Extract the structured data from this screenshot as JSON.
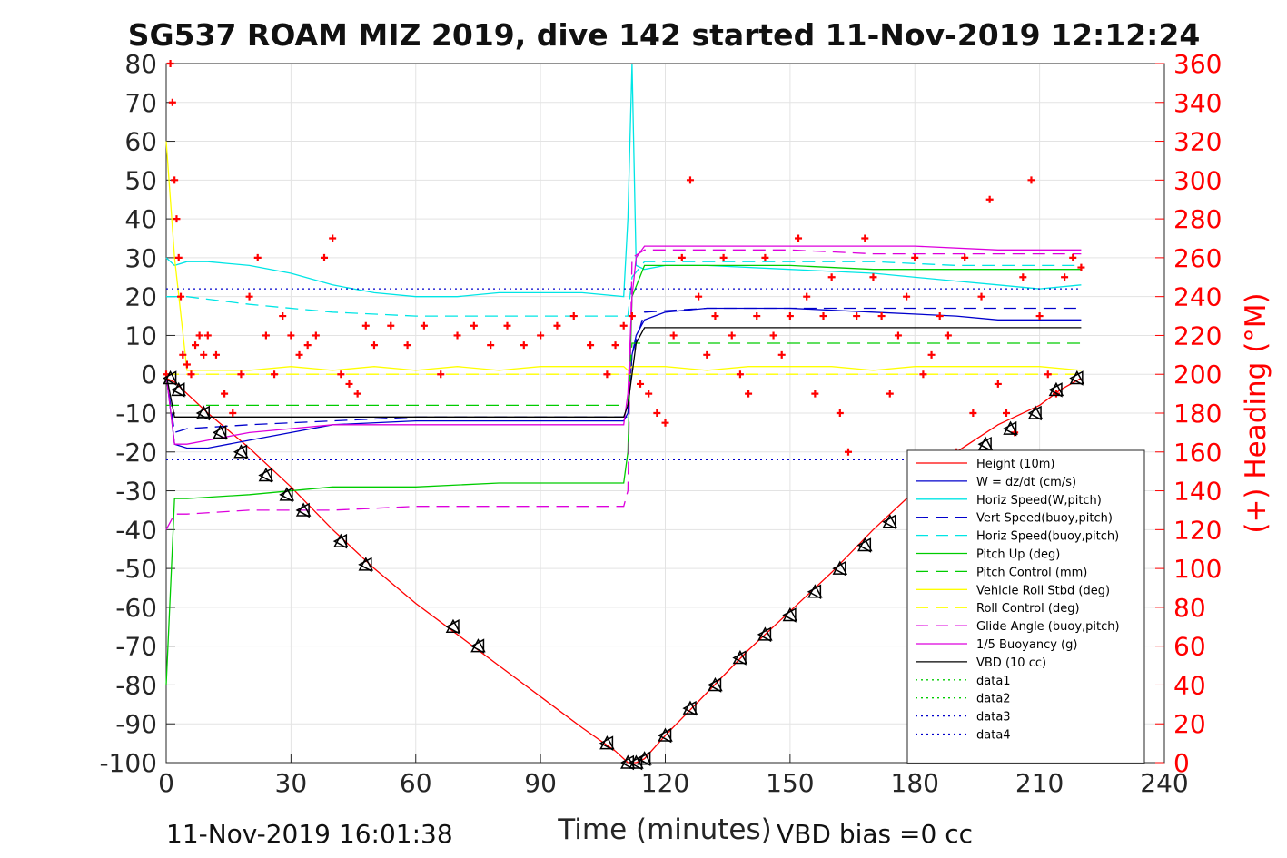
{
  "chart_data": {
    "type": "line",
    "title": "SG537 ROAM MIZ 2019, dive 142 started 11-Nov-2019 12:12:24",
    "xlabel": "Time (minutes)",
    "ylabel": "",
    "y2label": "(+) Heading (°M)",
    "xlim": [
      0,
      240
    ],
    "ylim": [
      -100,
      80
    ],
    "y2lim": [
      0,
      360
    ],
    "xticks": [
      "0",
      "30",
      "60",
      "90",
      "120",
      "150",
      "180",
      "210",
      "240"
    ],
    "yticks": [
      "80",
      "70",
      "60",
      "50",
      "40",
      "30",
      "20",
      "10",
      "0",
      "-10",
      "-20",
      "-30",
      "-40",
      "-50",
      "-60",
      "-70",
      "-80",
      "-90",
      "-100"
    ],
    "y2ticks": [
      "360",
      "340",
      "320",
      "300",
      "280",
      "260",
      "240",
      "220",
      "200",
      "180",
      "160",
      "140",
      "120",
      "100",
      "80",
      "60",
      "40",
      "20",
      "0"
    ],
    "grid": true,
    "legend_position": "lower-right",
    "footer_left": "11-Nov-2019 16:01:38",
    "footer_right": "VBD bias =0 cc",
    "colors": {
      "height": "#ff0000",
      "w": "#0000cc",
      "horiz_w": "#00e5e5",
      "vert_buoy": "#0000cc",
      "horiz_buoy": "#00e5e5",
      "pitch_up": "#00cc00",
      "pitch_ctrl": "#00cc00",
      "roll": "#ffff00",
      "roll_ctrl": "#ffff00",
      "glide": "#dd00dd",
      "buoyancy": "#dd00dd",
      "vbd": "#000000",
      "data1": "#00cc00",
      "data2": "#00cc00",
      "data3": "#0000cc",
      "data4": "#0000cc",
      "heading": "#ff0000"
    },
    "series": [
      {
        "key": "height",
        "name": "Height (10m)",
        "style": "solid",
        "x": [
          0,
          2,
          10,
          20,
          30,
          40,
          50,
          60,
          70,
          80,
          90,
          100,
          108,
          111,
          112,
          113,
          115,
          120,
          130,
          140,
          150,
          160,
          170,
          180,
          190,
          200,
          210,
          215,
          220
        ],
        "y": [
          -1,
          -2,
          -10,
          -19,
          -29,
          -40,
          -50,
          -59,
          -67,
          -75,
          -83,
          -91,
          -97,
          -100,
          -100,
          -100,
          -99,
          -93,
          -82,
          -71,
          -61,
          -51,
          -40,
          -30,
          -20,
          -13,
          -8,
          -4,
          -1
        ]
      },
      {
        "key": "w",
        "name": "W = dz/dt (cm/s)",
        "style": "solid",
        "x": [
          0,
          2,
          5,
          10,
          20,
          30,
          40,
          60,
          80,
          100,
          110,
          111,
          112,
          113,
          115,
          120,
          130,
          150,
          170,
          190,
          200,
          210,
          220
        ],
        "y": [
          0,
          -18,
          -19,
          -19,
          -17,
          -15,
          -13,
          -12,
          -12,
          -12,
          -12,
          -10,
          5,
          10,
          14,
          16,
          17,
          17,
          16,
          15,
          14,
          14,
          14
        ]
      },
      {
        "key": "horiz_w",
        "name": "Horiz Speed(W,pitch)",
        "style": "solid",
        "x": [
          0,
          2,
          5,
          10,
          20,
          30,
          40,
          50,
          60,
          70,
          80,
          90,
          100,
          110,
          111,
          112,
          113,
          115,
          120,
          130,
          150,
          170,
          190,
          200,
          210,
          220
        ],
        "y": [
          30,
          28,
          29,
          29,
          28,
          26,
          23,
          21,
          20,
          20,
          21,
          21,
          21,
          20,
          40,
          80,
          28,
          27,
          28,
          28,
          27,
          26,
          24,
          23,
          22,
          23
        ]
      },
      {
        "key": "vert_buoy",
        "name": "Vert Speed(buoy,pitch)",
        "style": "dash",
        "x": [
          0,
          2,
          5,
          20,
          40,
          60,
          80,
          100,
          111,
          112,
          115,
          130,
          150,
          170,
          190,
          210,
          220
        ],
        "y": [
          0,
          -15,
          -14,
          -13,
          -12,
          -11,
          -11,
          -11,
          -11,
          5,
          16,
          17,
          17,
          17,
          17,
          17,
          17
        ]
      },
      {
        "key": "horiz_buoy",
        "name": "Horiz Speed(buoy,pitch)",
        "style": "dash",
        "x": [
          0,
          2,
          5,
          20,
          40,
          60,
          80,
          100,
          111,
          112,
          115,
          130,
          150,
          170,
          190,
          210,
          220
        ],
        "y": [
          20,
          20,
          20,
          18,
          16,
          15,
          15,
          15,
          15,
          25,
          29,
          29,
          29,
          29,
          28,
          28,
          28
        ]
      },
      {
        "key": "pitch_up",
        "name": "Pitch Up (deg)",
        "style": "solid",
        "x": [
          0,
          2,
          5,
          20,
          40,
          60,
          80,
          100,
          110,
          111,
          112,
          115,
          130,
          150,
          170,
          190,
          210,
          220
        ],
        "y": [
          -80,
          -32,
          -32,
          -31,
          -29,
          -29,
          -28,
          -28,
          -28,
          -20,
          20,
          28,
          28,
          28,
          27,
          27,
          27,
          27
        ]
      },
      {
        "key": "pitch_ctrl",
        "name": "Pitch Control (mm)",
        "style": "dash",
        "x": [
          0,
          2,
          5,
          20,
          40,
          60,
          80,
          100,
          110,
          111,
          112,
          115,
          130,
          150,
          170,
          190,
          210,
          220
        ],
        "y": [
          -8,
          -8,
          -8,
          -8,
          -8,
          -8,
          -8,
          -8,
          -8,
          -8,
          8,
          8,
          8,
          8,
          8,
          8,
          8,
          8
        ]
      },
      {
        "key": "roll",
        "name": "Vehicle Roll Stbd (deg)",
        "style": "solid",
        "x": [
          0,
          2,
          5,
          10,
          20,
          30,
          40,
          50,
          60,
          70,
          80,
          90,
          100,
          110,
          111,
          112,
          115,
          120,
          130,
          140,
          150,
          160,
          170,
          180,
          190,
          200,
          210,
          220
        ],
        "y": [
          60,
          30,
          1,
          1,
          1,
          2,
          1,
          2,
          1,
          2,
          1,
          2,
          2,
          2,
          1,
          2,
          2,
          2,
          1,
          2,
          2,
          2,
          1,
          2,
          2,
          2,
          2,
          1
        ]
      },
      {
        "key": "roll_ctrl",
        "name": "Roll Control (deg)",
        "style": "dash",
        "x": [
          0,
          220
        ],
        "y": [
          0,
          0
        ]
      },
      {
        "key": "glide",
        "name": "Glide Angle (buoy,pitch)",
        "style": "dash",
        "x": [
          0,
          2,
          5,
          20,
          40,
          60,
          80,
          100,
          110,
          111,
          112,
          115,
          130,
          150,
          170,
          190,
          210,
          220
        ],
        "y": [
          -40,
          -36,
          -36,
          -35,
          -35,
          -34,
          -34,
          -34,
          -34,
          -30,
          30,
          32,
          32,
          32,
          31,
          31,
          31,
          31
        ]
      },
      {
        "key": "buoyancy",
        "name": "1/5 Buoyancy (g)",
        "style": "solid",
        "x": [
          0,
          2,
          5,
          10,
          20,
          30,
          40,
          60,
          80,
          100,
          110,
          111,
          112,
          113,
          115,
          120,
          140,
          160,
          180,
          200,
          220
        ],
        "y": [
          0,
          -18,
          -18,
          -17,
          -15,
          -14,
          -13,
          -13,
          -13,
          -13,
          -13,
          -5,
          20,
          30,
          33,
          33,
          33,
          33,
          33,
          32,
          32
        ]
      },
      {
        "key": "vbd",
        "name": "VBD (10 cc)",
        "style": "solid",
        "x": [
          0,
          2,
          5,
          110,
          111,
          112,
          113,
          115,
          220
        ],
        "y": [
          0,
          -11,
          -11,
          -11,
          -8,
          0,
          8,
          12,
          12
        ]
      },
      {
        "key": "data1",
        "name": "data1",
        "style": "dot",
        "x": [],
        "y": []
      },
      {
        "key": "data2",
        "name": "data2",
        "style": "dot",
        "x": [],
        "y": []
      },
      {
        "key": "data3",
        "name": "data3",
        "style": "dot",
        "x": [
          0,
          220
        ],
        "y": [
          22,
          22
        ]
      },
      {
        "key": "data4",
        "name": "data4",
        "style": "dot",
        "x": [
          0,
          220
        ],
        "y": [
          -22,
          -22
        ]
      }
    ],
    "heading": {
      "name": "Heading",
      "axis": "right",
      "x": [
        0,
        1,
        1.5,
        2,
        2.5,
        3,
        3.5,
        4,
        5,
        6,
        7,
        8,
        9,
        10,
        12,
        14,
        16,
        18,
        20,
        22,
        24,
        26,
        28,
        30,
        32,
        34,
        36,
        38,
        40,
        42,
        44,
        46,
        48,
        50,
        54,
        58,
        62,
        66,
        70,
        74,
        78,
        82,
        86,
        90,
        94,
        98,
        102,
        106,
        108,
        110,
        112,
        114,
        116,
        118,
        120,
        122,
        124,
        126,
        128,
        130,
        132,
        134,
        136,
        138,
        140,
        142,
        144,
        146,
        148,
        150,
        152,
        154,
        156,
        158,
        160,
        162,
        164,
        166,
        168,
        170,
        172,
        174,
        176,
        178,
        180,
        182,
        184,
        186,
        188,
        190,
        192,
        194,
        196,
        198,
        200,
        202,
        204,
        206,
        208,
        210,
        212,
        214,
        216,
        218,
        220
      ],
      "y": [
        200,
        360,
        340,
        300,
        280,
        260,
        240,
        210,
        205,
        200,
        215,
        220,
        210,
        220,
        210,
        190,
        180,
        200,
        240,
        260,
        220,
        200,
        230,
        220,
        210,
        215,
        220,
        260,
        270,
        200,
        195,
        190,
        225,
        215,
        225,
        215,
        225,
        200,
        220,
        225,
        215,
        225,
        215,
        220,
        225,
        230,
        215,
        200,
        215,
        225,
        230,
        195,
        190,
        180,
        175,
        220,
        260,
        300,
        240,
        210,
        230,
        260,
        220,
        200,
        190,
        230,
        260,
        220,
        210,
        230,
        270,
        240,
        190,
        230,
        250,
        180,
        160,
        230,
        270,
        250,
        230,
        190,
        220,
        240,
        260,
        200,
        210,
        230,
        220,
        160,
        260,
        180,
        240,
        290,
        195,
        180,
        170,
        250,
        300,
        230,
        200,
        190,
        250,
        260,
        255
      ]
    },
    "markers": {
      "style": "triangles",
      "x": [
        1,
        3,
        9,
        13,
        18,
        24,
        29,
        33,
        42,
        48,
        69,
        75,
        106,
        111,
        113,
        115,
        120,
        126,
        132,
        138,
        144,
        150,
        156,
        162,
        168,
        174,
        197,
        203,
        209,
        214,
        219
      ],
      "y": [
        -1,
        -4,
        -10,
        -15,
        -20,
        -26,
        -31,
        -35,
        -43,
        -49,
        -65,
        -70,
        -95,
        -100,
        -100,
        -99,
        -93,
        -86,
        -80,
        -73,
        -67,
        -62,
        -56,
        -50,
        -44,
        -38,
        -18,
        -14,
        -10,
        -4,
        -1
      ]
    }
  }
}
